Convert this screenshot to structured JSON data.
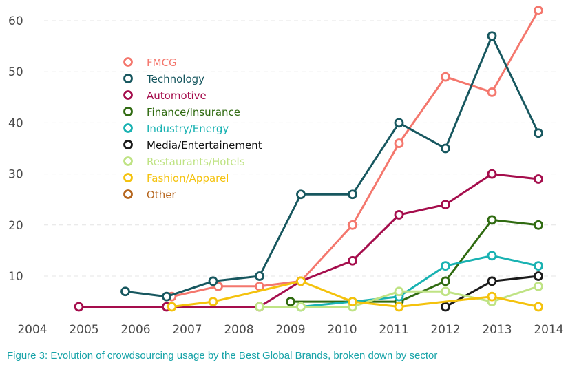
{
  "caption": "Figure 3: Evolution of crowdsourcing usage by the Best Global Brands, broken down by sector",
  "chart_data": {
    "type": "line",
    "title": "",
    "xlabel": "",
    "ylabel": "",
    "xlim": [
      2004,
      2014
    ],
    "ylim": [
      3,
      62
    ],
    "x_ticks": [
      2004,
      2005,
      2006,
      2007,
      2008,
      2009,
      2010,
      2011,
      2012,
      2013,
      2014
    ],
    "y_ticks": [
      10,
      20,
      30,
      40,
      50,
      60
    ],
    "grid": "horizontal dashed",
    "legend_position": "upper-left",
    "series": [
      {
        "name": "FMCG",
        "color": "#f4776d",
        "points": [
          [
            2006.7,
            6
          ],
          [
            2007.6,
            8
          ],
          [
            2008.4,
            8
          ],
          [
            2009.2,
            9
          ],
          [
            2010.2,
            20
          ],
          [
            2011.1,
            36
          ],
          [
            2012.0,
            49
          ],
          [
            2012.9,
            46
          ],
          [
            2013.8,
            62
          ]
        ]
      },
      {
        "name": "Technology",
        "color": "#17575f",
        "points": [
          [
            2005.8,
            7
          ],
          [
            2006.6,
            6
          ],
          [
            2007.5,
            9
          ],
          [
            2008.4,
            10
          ],
          [
            2009.2,
            26
          ],
          [
            2010.2,
            26
          ],
          [
            2011.1,
            40
          ],
          [
            2012.0,
            35
          ],
          [
            2012.9,
            57
          ],
          [
            2013.8,
            38
          ]
        ]
      },
      {
        "name": "Automotive",
        "color": "#a50d4c",
        "points": [
          [
            2004.9,
            4
          ],
          [
            2006.6,
            4
          ],
          [
            2008.4,
            4
          ],
          [
            2009.2,
            9
          ],
          [
            2010.2,
            13
          ],
          [
            2011.1,
            22
          ],
          [
            2012.0,
            24
          ],
          [
            2012.9,
            30
          ],
          [
            2013.8,
            29
          ]
        ]
      },
      {
        "name": "Finance/Insurance",
        "color": "#2f6a10",
        "points": [
          [
            2009.0,
            5
          ],
          [
            2011.1,
            5
          ],
          [
            2012.0,
            9
          ],
          [
            2012.9,
            21
          ],
          [
            2013.8,
            20
          ]
        ]
      },
      {
        "name": "Industry/Energy",
        "color": "#19b2b2",
        "points": [
          [
            2009.2,
            4
          ],
          [
            2010.2,
            5
          ],
          [
            2011.1,
            6
          ],
          [
            2012.0,
            12
          ],
          [
            2012.9,
            14
          ],
          [
            2013.8,
            12
          ]
        ]
      },
      {
        "name": "Media/Entertainement",
        "color": "#1a1a1a",
        "points": [
          [
            2012.0,
            4
          ],
          [
            2012.9,
            9
          ],
          [
            2013.8,
            10
          ]
        ]
      },
      {
        "name": "Restaurants/Hotels",
        "color": "#bfe384",
        "points": [
          [
            2008.4,
            4
          ],
          [
            2009.2,
            4
          ],
          [
            2010.2,
            4
          ],
          [
            2011.1,
            7
          ],
          [
            2012.0,
            7
          ],
          [
            2012.9,
            5
          ],
          [
            2013.8,
            8
          ]
        ]
      },
      {
        "name": "Fashion/Apparel",
        "color": "#f4c20d",
        "points": [
          [
            2006.7,
            4
          ],
          [
            2007.5,
            5
          ],
          [
            2009.2,
            9
          ],
          [
            2010.2,
            5
          ],
          [
            2011.1,
            4
          ],
          [
            2012.9,
            6
          ],
          [
            2013.8,
            4
          ]
        ]
      },
      {
        "name": "Other",
        "color": "#b5651d",
        "points": []
      }
    ]
  }
}
